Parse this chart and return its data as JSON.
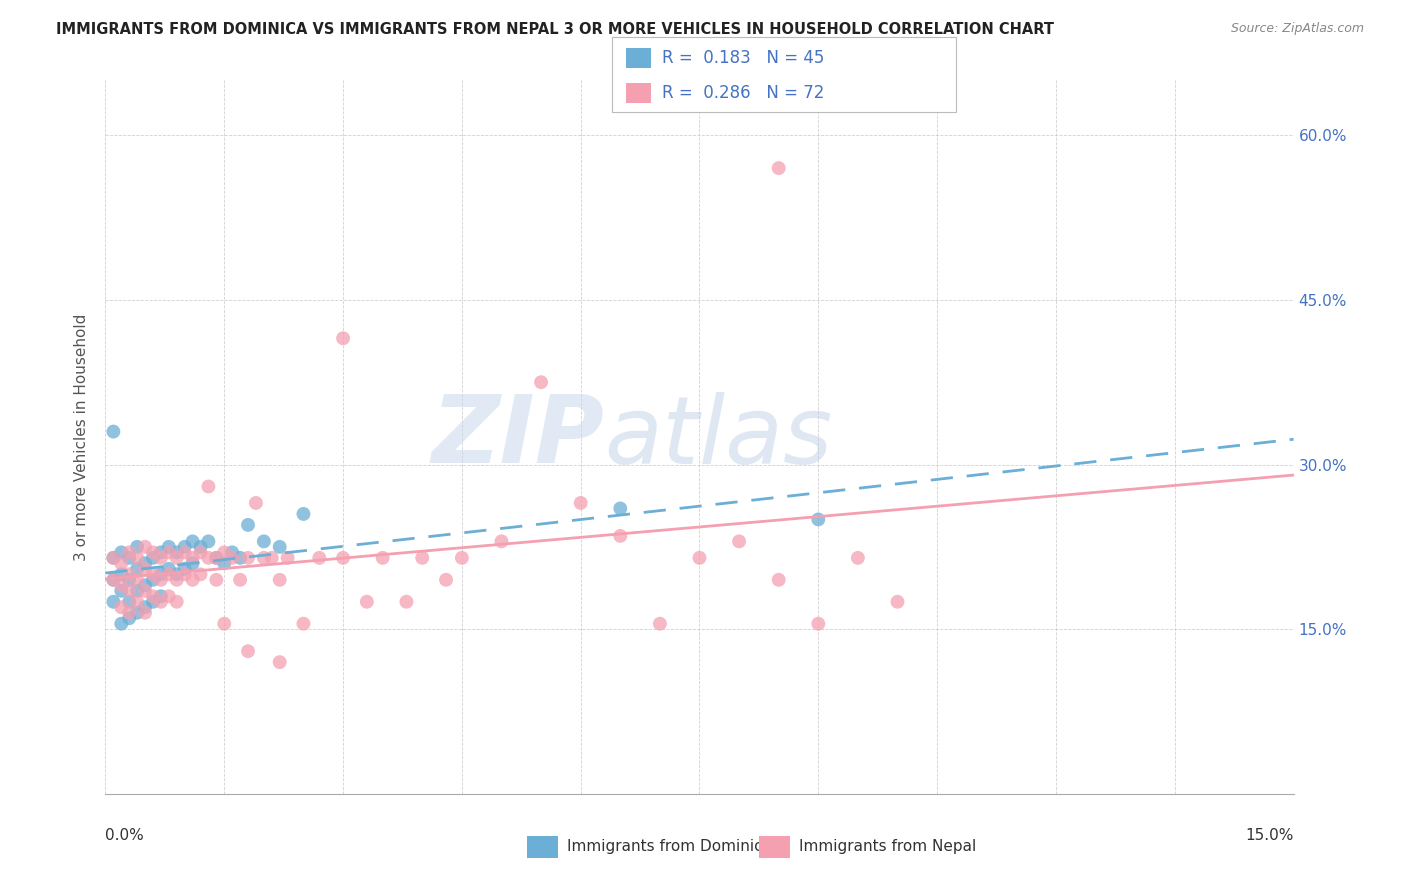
{
  "title": "IMMIGRANTS FROM DOMINICA VS IMMIGRANTS FROM NEPAL 3 OR MORE VEHICLES IN HOUSEHOLD CORRELATION CHART",
  "source": "Source: ZipAtlas.com",
  "ylabel": "3 or more Vehicles in Household",
  "xlim": [
    0.0,
    0.15
  ],
  "ylim": [
    0.0,
    0.65
  ],
  "dominica_color": "#6baed6",
  "nepal_color": "#f4a0b0",
  "dominica_R": 0.183,
  "dominica_N": 45,
  "nepal_R": 0.286,
  "nepal_N": 72,
  "legend_label_dominica": "Immigrants from Dominica",
  "legend_label_nepal": "Immigrants from Nepal",
  "dominica_scatter_x": [
    0.001,
    0.001,
    0.001,
    0.002,
    0.002,
    0.002,
    0.002,
    0.003,
    0.003,
    0.003,
    0.003,
    0.004,
    0.004,
    0.004,
    0.004,
    0.005,
    0.005,
    0.005,
    0.006,
    0.006,
    0.006,
    0.007,
    0.007,
    0.007,
    0.008,
    0.008,
    0.009,
    0.009,
    0.01,
    0.01,
    0.011,
    0.011,
    0.012,
    0.013,
    0.014,
    0.015,
    0.016,
    0.017,
    0.018,
    0.02,
    0.022,
    0.025,
    0.001,
    0.065,
    0.09
  ],
  "dominica_scatter_y": [
    0.215,
    0.195,
    0.175,
    0.22,
    0.2,
    0.185,
    0.155,
    0.215,
    0.195,
    0.175,
    0.16,
    0.225,
    0.205,
    0.185,
    0.165,
    0.21,
    0.19,
    0.17,
    0.215,
    0.195,
    0.175,
    0.22,
    0.2,
    0.18,
    0.225,
    0.205,
    0.22,
    0.2,
    0.225,
    0.205,
    0.23,
    0.21,
    0.225,
    0.23,
    0.215,
    0.21,
    0.22,
    0.215,
    0.245,
    0.23,
    0.225,
    0.255,
    0.33,
    0.26,
    0.25
  ],
  "nepal_scatter_x": [
    0.001,
    0.001,
    0.002,
    0.002,
    0.002,
    0.003,
    0.003,
    0.003,
    0.003,
    0.004,
    0.004,
    0.004,
    0.005,
    0.005,
    0.005,
    0.005,
    0.006,
    0.006,
    0.006,
    0.007,
    0.007,
    0.007,
    0.008,
    0.008,
    0.008,
    0.009,
    0.009,
    0.009,
    0.01,
    0.01,
    0.011,
    0.011,
    0.012,
    0.012,
    0.013,
    0.013,
    0.014,
    0.014,
    0.015,
    0.015,
    0.016,
    0.017,
    0.018,
    0.019,
    0.02,
    0.021,
    0.022,
    0.023,
    0.025,
    0.027,
    0.03,
    0.033,
    0.035,
    0.038,
    0.04,
    0.043,
    0.045,
    0.05,
    0.055,
    0.06,
    0.065,
    0.07,
    0.075,
    0.08,
    0.085,
    0.09,
    0.095,
    0.1,
    0.018,
    0.022,
    0.03,
    0.085
  ],
  "nepal_scatter_y": [
    0.215,
    0.195,
    0.21,
    0.19,
    0.17,
    0.22,
    0.2,
    0.185,
    0.165,
    0.215,
    0.195,
    0.175,
    0.225,
    0.205,
    0.185,
    0.165,
    0.22,
    0.2,
    0.18,
    0.215,
    0.195,
    0.175,
    0.22,
    0.2,
    0.18,
    0.215,
    0.195,
    0.175,
    0.22,
    0.2,
    0.215,
    0.195,
    0.22,
    0.2,
    0.215,
    0.28,
    0.215,
    0.195,
    0.22,
    0.155,
    0.215,
    0.195,
    0.215,
    0.265,
    0.215,
    0.215,
    0.195,
    0.215,
    0.155,
    0.215,
    0.215,
    0.175,
    0.215,
    0.175,
    0.215,
    0.195,
    0.215,
    0.23,
    0.375,
    0.265,
    0.235,
    0.155,
    0.215,
    0.23,
    0.195,
    0.155,
    0.215,
    0.175,
    0.13,
    0.12,
    0.415,
    0.57
  ]
}
